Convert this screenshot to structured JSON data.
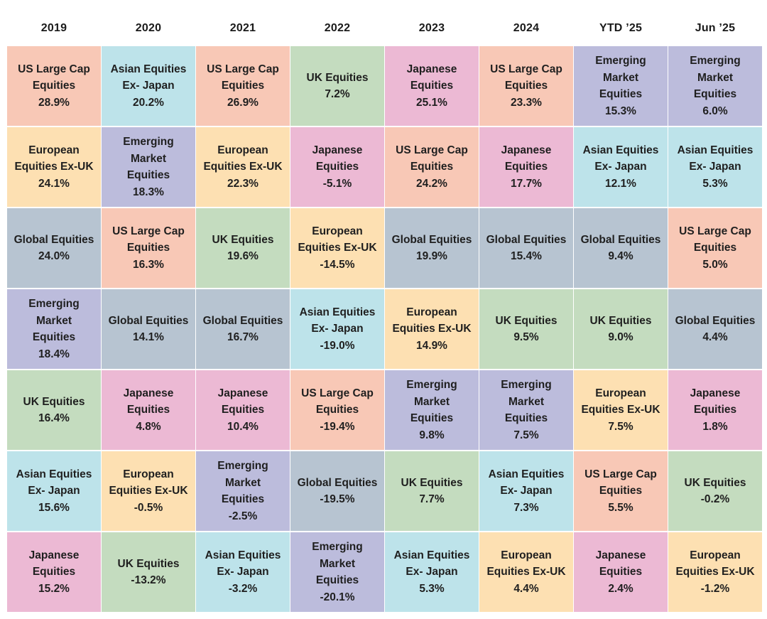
{
  "chart_data": {
    "type": "table",
    "columns": [
      "2019",
      "2020",
      "2021",
      "2022",
      "2023",
      "2024",
      "YTD ’25",
      "Jun ’25"
    ],
    "colors": {
      "US Large Cap Equities": "#f8c8b6",
      "Asian Equities Ex- Japan": "#bde3ea",
      "UK Equities": "#c4dcbf",
      "Japanese Equities": "#ecb9d4",
      "Emerging Market Equities": "#bcbcdc",
      "European Equities Ex-UK": "#fde0b2",
      "Global Equities": "#b7c4d1"
    },
    "cells": [
      [
        {
          "label": "US Large Cap\nEquities",
          "value": "28.9%",
          "asset": "US Large Cap Equities"
        },
        {
          "label": "European\nEquities Ex-UK",
          "value": "24.1%",
          "asset": "European Equities Ex-UK"
        },
        {
          "label": "Global Equities",
          "value": "24.0%",
          "asset": "Global Equities"
        },
        {
          "label": "Emerging Market\nEquities",
          "value": "18.4%",
          "asset": "Emerging Market Equities"
        },
        {
          "label": "UK Equities",
          "value": "16.4%",
          "asset": "UK Equities"
        },
        {
          "label": "Asian Equities\nEx- Japan",
          "value": "15.6%",
          "asset": "Asian Equities Ex- Japan"
        },
        {
          "label": "Japanese\nEquities",
          "value": "15.2%",
          "asset": "Japanese Equities"
        }
      ],
      [
        {
          "label": "Asian Equities\nEx- Japan",
          "value": "20.2%",
          "asset": "Asian Equities Ex- Japan"
        },
        {
          "label": "Emerging Market\nEquities",
          "value": "18.3%",
          "asset": "Emerging Market Equities"
        },
        {
          "label": "US Large Cap\nEquities",
          "value": "16.3%",
          "asset": "US Large Cap Equities"
        },
        {
          "label": "Global Equities",
          "value": "14.1%",
          "asset": "Global Equities"
        },
        {
          "label": "Japanese\nEquities",
          "value": "4.8%",
          "asset": "Japanese Equities"
        },
        {
          "label": "European\nEquities Ex-UK",
          "value": "-0.5%",
          "asset": "European Equities Ex-UK"
        },
        {
          "label": "UK Equities",
          "value": "-13.2%",
          "asset": "UK Equities"
        }
      ],
      [
        {
          "label": "US Large Cap\nEquities",
          "value": "26.9%",
          "asset": "US Large Cap Equities"
        },
        {
          "label": "European\nEquities Ex-UK",
          "value": "22.3%",
          "asset": "European Equities Ex-UK"
        },
        {
          "label": "UK Equities",
          "value": "19.6%",
          "asset": "UK Equities"
        },
        {
          "label": "Global Equities",
          "value": "16.7%",
          "asset": "Global Equities"
        },
        {
          "label": "Japanese\nEquities",
          "value": "10.4%",
          "asset": "Japanese Equities"
        },
        {
          "label": "Emerging Market\nEquities",
          "value": "-2.5%",
          "asset": "Emerging Market Equities"
        },
        {
          "label": "Asian Equities\nEx- Japan",
          "value": "-3.2%",
          "asset": "Asian Equities Ex- Japan"
        }
      ],
      [
        {
          "label": "UK Equities",
          "value": "7.2%",
          "asset": "UK Equities"
        },
        {
          "label": "Japanese\nEquities",
          "value": "-5.1%",
          "asset": "Japanese Equities"
        },
        {
          "label": "European\nEquities Ex-UK",
          "value": "-14.5%",
          "asset": "European Equities Ex-UK"
        },
        {
          "label": "Asian Equities\nEx- Japan",
          "value": "-19.0%",
          "asset": "Asian Equities Ex- Japan"
        },
        {
          "label": "US Large Cap\nEquities",
          "value": "-19.4%",
          "asset": "US Large Cap Equities"
        },
        {
          "label": "Global Equities",
          "value": "-19.5%",
          "asset": "Global Equities"
        },
        {
          "label": "Emerging Market\nEquities",
          "value": "-20.1%",
          "asset": "Emerging Market Equities"
        }
      ],
      [
        {
          "label": "Japanese\nEquities",
          "value": "25.1%",
          "asset": "Japanese Equities"
        },
        {
          "label": "US Large Cap\nEquities",
          "value": "24.2%",
          "asset": "US Large Cap Equities"
        },
        {
          "label": "Global Equities",
          "value": "19.9%",
          "asset": "Global Equities"
        },
        {
          "label": "European\nEquities Ex-UK",
          "value": "14.9%",
          "asset": "European Equities Ex-UK"
        },
        {
          "label": "Emerging Market\nEquities",
          "value": "9.8%",
          "asset": "Emerging Market Equities"
        },
        {
          "label": "UK Equities",
          "value": "7.7%",
          "asset": "UK Equities"
        },
        {
          "label": "Asian Equities\nEx- Japan",
          "value": "5.3%",
          "asset": "Asian Equities Ex- Japan"
        }
      ],
      [
        {
          "label": "US Large Cap\nEquities",
          "value": "23.3%",
          "asset": "US Large Cap Equities"
        },
        {
          "label": "Japanese\nEquities",
          "value": "17.7%",
          "asset": "Japanese Equities"
        },
        {
          "label": "Global Equities",
          "value": "15.4%",
          "asset": "Global Equities"
        },
        {
          "label": "UK Equities",
          "value": "9.5%",
          "asset": "UK Equities"
        },
        {
          "label": "Emerging Market\nEquities",
          "value": "7.5%",
          "asset": "Emerging Market Equities"
        },
        {
          "label": "Asian Equities\nEx- Japan",
          "value": "7.3%",
          "asset": "Asian Equities Ex- Japan"
        },
        {
          "label": "European\nEquities Ex-UK",
          "value": "4.4%",
          "asset": "European Equities Ex-UK"
        }
      ],
      [
        {
          "label": "Emerging Market\nEquities",
          "value": "15.3%",
          "asset": "Emerging Market Equities"
        },
        {
          "label": "Asian Equities\nEx- Japan",
          "value": "12.1%",
          "asset": "Asian Equities Ex- Japan"
        },
        {
          "label": "Global Equities",
          "value": "9.4%",
          "asset": "Global Equities"
        },
        {
          "label": "UK Equities",
          "value": "9.0%",
          "asset": "UK Equities"
        },
        {
          "label": "European\nEquities Ex-UK",
          "value": "7.5%",
          "asset": "European Equities Ex-UK"
        },
        {
          "label": "US Large Cap\nEquities",
          "value": "5.5%",
          "asset": "US Large Cap Equities"
        },
        {
          "label": "Japanese\nEquities",
          "value": "2.4%",
          "asset": "Japanese Equities"
        }
      ],
      [
        {
          "label": "Emerging Market\nEquities",
          "value": "6.0%",
          "asset": "Emerging Market Equities"
        },
        {
          "label": "Asian Equities\nEx- Japan",
          "value": "5.3%",
          "asset": "Asian Equities Ex- Japan"
        },
        {
          "label": "US Large Cap\nEquities",
          "value": "5.0%",
          "asset": "US Large Cap Equities"
        },
        {
          "label": "Global Equities",
          "value": "4.4%",
          "asset": "Global Equities"
        },
        {
          "label": "Japanese\nEquities",
          "value": "1.8%",
          "asset": "Japanese Equities"
        },
        {
          "label": "UK Equities",
          "value": "-0.2%",
          "asset": "UK Equities"
        },
        {
          "label": "European\nEquities Ex-UK",
          "value": "-1.2%",
          "asset": "European Equities Ex-UK"
        }
      ]
    ]
  }
}
